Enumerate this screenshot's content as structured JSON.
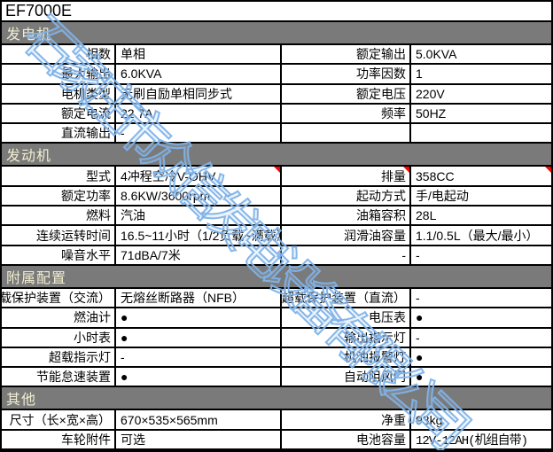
{
  "title": "EF7000E",
  "watermark": "石家庄市众信发电设备有限公司",
  "colors": {
    "section_bar_bg": "#7a7a7a",
    "section_bar_text": "#F1EDD0",
    "watermark_blue": "#80B2E8",
    "comment_marker_red": "#FF0000",
    "grid_border": "#000000"
  },
  "sections": [
    {
      "header": "发电机",
      "rows": [
        {
          "l1": "相数",
          "v1": "单相",
          "l2": "额定输出",
          "v2": "5.0KVA"
        },
        {
          "l1": "最大输出",
          "v1": "6.0KVA",
          "l2": "功率因数",
          "v2": "1"
        },
        {
          "l1": "电机类型",
          "v1": "无刷自励单相同步式",
          "l2": "额定电压",
          "v2": "220V"
        },
        {
          "l1": "额定电流",
          "v1": "22.7A",
          "l2": "频率",
          "v2": "50HZ"
        },
        {
          "l1": "直流输出",
          "v1": "-",
          "l2": "",
          "v2": ""
        }
      ]
    },
    {
      "header": "发动机",
      "rows": [
        {
          "l1": "型式",
          "v1": "4冲程空冷V-OHV",
          "l2": "排量",
          "v2": "358CC"
        },
        {
          "l1": "额定功率",
          "v1": "8.6KW/3600rpm",
          "l2": "起动方式",
          "v2": "手/电起动"
        },
        {
          "l1": "燃料",
          "v1": "汽油",
          "l2": "油箱容积",
          "v2": "28L"
        },
        {
          "l1": "连续运转时间",
          "v1": "16.5~11小时（1/2负载~满载）",
          "l2": "润滑油容量",
          "v2": "1.1/0.5L（最大/最小）"
        },
        {
          "l1": "噪音水平",
          "v1": "71dBA/7米",
          "l2": "-",
          "v2": "-"
        }
      ]
    },
    {
      "header": "附属配置",
      "rows": [
        {
          "l1": "超载保护装置（交流）",
          "v1": "无熔丝断路器（NFB）",
          "l2": "超载保护装置（直流）",
          "v2": "-"
        },
        {
          "l1": "燃油计",
          "v1": "●",
          "l2": "电压表",
          "v2": "●"
        },
        {
          "l1": "小时表",
          "v1": "●",
          "l2": "输出指示灯",
          "v2": "-"
        },
        {
          "l1": "超载指示灯",
          "v1": "-",
          "l2": "机油报警灯",
          "v2": "●"
        },
        {
          "l1": "节能怠速装置",
          "v1": "●",
          "l2": "自动阻风门",
          "v2": "●"
        }
      ]
    },
    {
      "header": "其他",
      "rows": [
        {
          "l1": "尺寸（长×宽×高）",
          "v1": "670×535×565mm",
          "l2": "净重",
          "v2": "93kg"
        },
        {
          "l1": "车轮附件",
          "v1": "可选",
          "l2": "电池容量",
          "v2": "12V-12AH(机组自带)"
        }
      ]
    }
  ]
}
